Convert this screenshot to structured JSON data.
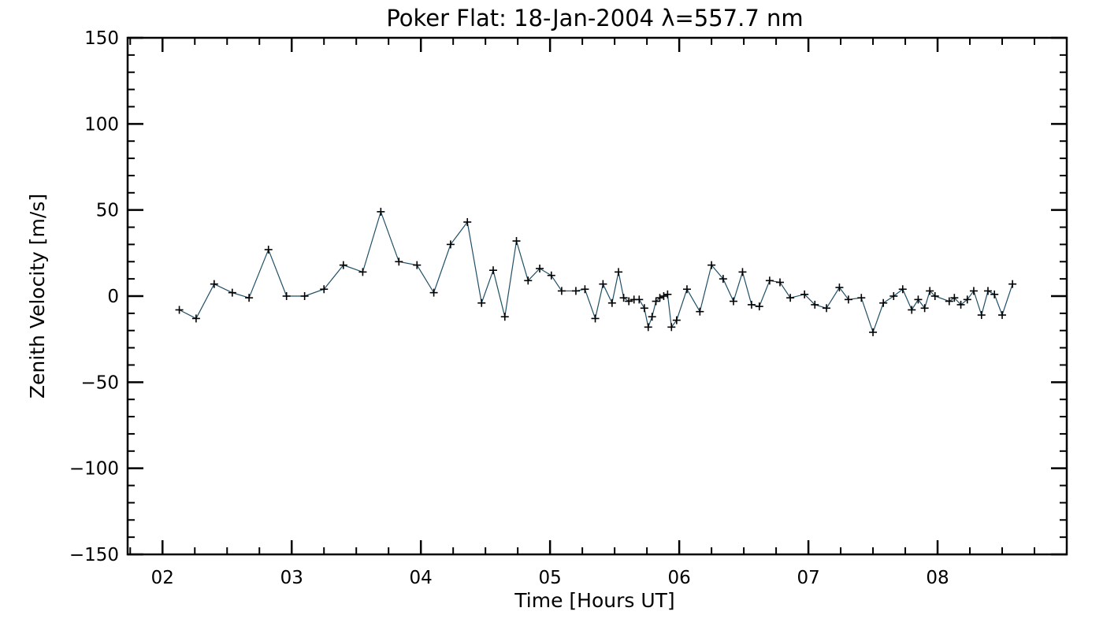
{
  "chart_data": {
    "type": "line",
    "title": "Poker Flat: 18-Jan-2004 λ=557.7 nm",
    "xlabel": "Time [Hours UT]",
    "ylabel": "Zenith Velocity [m/s]",
    "xlim": [
      1.73,
      9.0
    ],
    "ylim": [
      -150,
      150
    ],
    "x_ticks": [
      {
        "value": 2,
        "label": "02"
      },
      {
        "value": 3,
        "label": "03"
      },
      {
        "value": 4,
        "label": "04"
      },
      {
        "value": 5,
        "label": "05"
      },
      {
        "value": 6,
        "label": "06"
      },
      {
        "value": 7,
        "label": "07"
      },
      {
        "value": 8,
        "label": "08"
      }
    ],
    "x_minor_step": 0.25,
    "y_ticks": [
      {
        "value": 150,
        "label": "150"
      },
      {
        "value": 100,
        "label": "100"
      },
      {
        "value": 50,
        "label": "50"
      },
      {
        "value": 0,
        "label": "0"
      },
      {
        "value": -50,
        "label": "−50"
      },
      {
        "value": -100,
        "label": "−100"
      },
      {
        "value": -150,
        "label": "−150"
      }
    ],
    "y_minor_step": 10,
    "grid": false,
    "colors": {
      "line": "#1f4f66",
      "marker": "#000000",
      "frame": "#000000"
    },
    "series": [
      {
        "points": [
          [
            2.13,
            -8
          ],
          [
            2.26,
            -13
          ],
          [
            2.4,
            7
          ],
          [
            2.54,
            2
          ],
          [
            2.67,
            -1
          ],
          [
            2.82,
            27
          ],
          [
            2.96,
            0
          ],
          [
            3.1,
            0
          ],
          [
            3.25,
            4
          ],
          [
            3.4,
            18
          ],
          [
            3.55,
            14
          ],
          [
            3.69,
            49
          ],
          [
            3.83,
            20
          ],
          [
            3.97,
            18
          ],
          [
            4.1,
            2
          ],
          [
            4.23,
            30
          ],
          [
            4.36,
            43
          ],
          [
            4.47,
            -4
          ],
          [
            4.56,
            15
          ],
          [
            4.65,
            -12
          ],
          [
            4.74,
            32
          ],
          [
            4.83,
            9
          ],
          [
            4.92,
            16
          ],
          [
            5.01,
            12
          ],
          [
            5.09,
            3
          ],
          [
            5.2,
            3
          ],
          [
            5.27,
            4
          ],
          [
            5.35,
            -13
          ],
          [
            5.41,
            7
          ],
          [
            5.48,
            -4
          ],
          [
            5.53,
            14
          ],
          [
            5.57,
            -1
          ],
          [
            5.61,
            -3
          ],
          [
            5.65,
            -2
          ],
          [
            5.69,
            -2
          ],
          [
            5.73,
            -7
          ],
          [
            5.76,
            -18
          ],
          [
            5.79,
            -12
          ],
          [
            5.82,
            -3
          ],
          [
            5.85,
            -1
          ],
          [
            5.88,
            0
          ],
          [
            5.91,
            1
          ],
          [
            5.94,
            -18
          ],
          [
            5.98,
            -14
          ],
          [
            6.06,
            4
          ],
          [
            6.16,
            -9
          ],
          [
            6.25,
            18
          ],
          [
            6.34,
            10
          ],
          [
            6.42,
            -3
          ],
          [
            6.49,
            14
          ],
          [
            6.56,
            -5
          ],
          [
            6.62,
            -6
          ],
          [
            6.7,
            9
          ],
          [
            6.78,
            8
          ],
          [
            6.86,
            -1
          ],
          [
            6.97,
            1
          ],
          [
            7.05,
            -5
          ],
          [
            7.14,
            -7
          ],
          [
            7.24,
            5
          ],
          [
            7.31,
            -2
          ],
          [
            7.41,
            -1
          ],
          [
            7.5,
            -21
          ],
          [
            7.58,
            -4
          ],
          [
            7.66,
            0
          ],
          [
            7.73,
            4
          ],
          [
            7.8,
            -8
          ],
          [
            7.85,
            -2
          ],
          [
            7.9,
            -7
          ],
          [
            7.94,
            3
          ],
          [
            7.98,
            0
          ],
          [
            8.09,
            -3
          ],
          [
            8.13,
            -1
          ],
          [
            8.18,
            -5
          ],
          [
            8.23,
            -2
          ],
          [
            8.28,
            3
          ],
          [
            8.34,
            -11
          ],
          [
            8.39,
            3
          ],
          [
            8.44,
            1
          ],
          [
            8.5,
            -11
          ],
          [
            8.58,
            7
          ]
        ]
      }
    ]
  }
}
